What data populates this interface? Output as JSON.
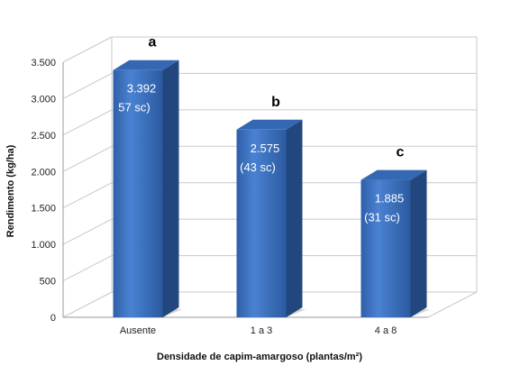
{
  "chart_data": {
    "type": "bar",
    "title": "",
    "xlabel": "Densidade de capim-amargoso (plantas/m²)",
    "ylabel": "Rendimento (kg/ha)",
    "ylim": [
      0,
      3500
    ],
    "y_ticks": [
      {
        "value": 0,
        "label": "0"
      },
      {
        "value": 500,
        "label": "500"
      },
      {
        "value": 1000,
        "label": "1.000"
      },
      {
        "value": 1500,
        "label": "1.500"
      },
      {
        "value": 2000,
        "label": "2.000"
      },
      {
        "value": 2500,
        "label": "2.500"
      },
      {
        "value": 3000,
        "label": "3.000"
      },
      {
        "value": 3500,
        "label": "3.500"
      }
    ],
    "grid": true,
    "categories": [
      "Ausente",
      "1 a 3",
      "4 a 8"
    ],
    "values": [
      3392,
      2575,
      1885
    ],
    "value_labels": [
      "3.392",
      "2.575",
      "1.885"
    ],
    "sub_labels": [
      "57 sc)",
      "(43 sc)",
      "(31 sc)"
    ],
    "significance_letters": [
      "a",
      "b",
      "c"
    ],
    "bar_color": "#3f74c4"
  }
}
